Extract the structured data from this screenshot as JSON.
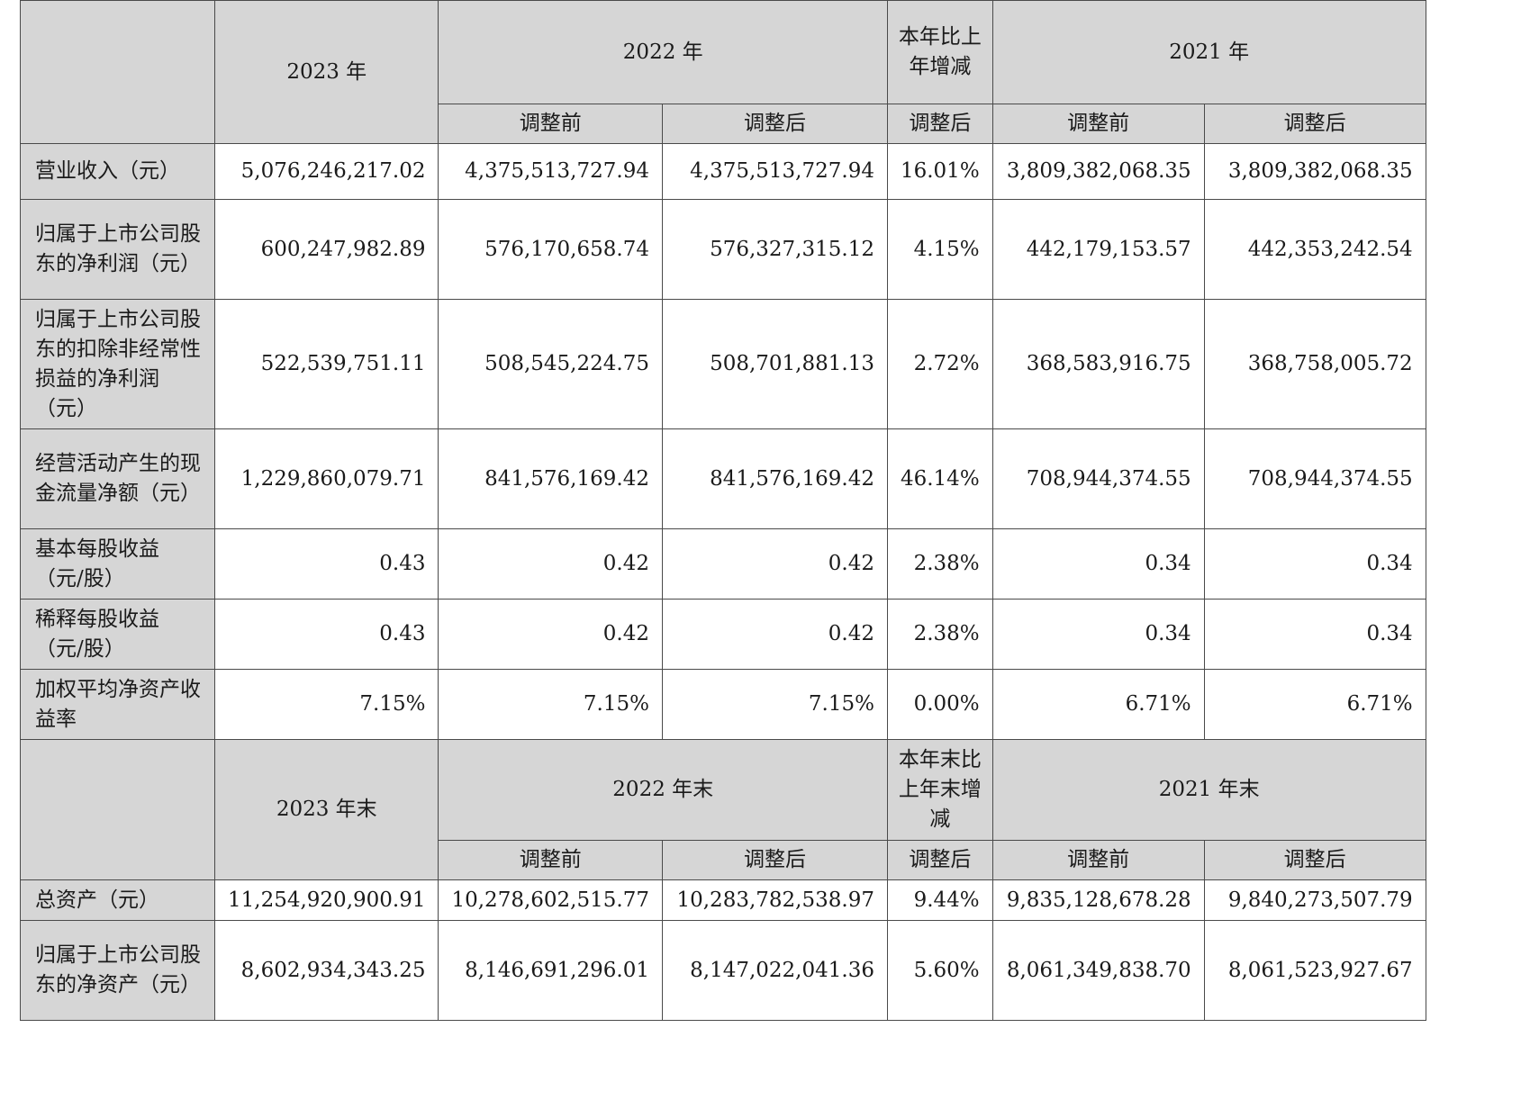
{
  "section1": {
    "header": {
      "year_2023": "2023 年",
      "year_2022": "2022 年",
      "change": "本年比上年增减",
      "year_2021": "2021 年",
      "before_adjust": "调整前",
      "after_adjust": "调整后"
    },
    "rows": [
      {
        "label": "营业收入（元）",
        "v2023": "5,076,246,217.02",
        "v2022_before": "4,375,513,727.94",
        "v2022_after": "4,375,513,727.94",
        "change": "16.01%",
        "v2021_before": "3,809,382,068.35",
        "v2021_after": "3,809,382,068.35"
      },
      {
        "label": "归属于上市公司股东的净利润（元）",
        "v2023": "600,247,982.89",
        "v2022_before": "576,170,658.74",
        "v2022_after": "576,327,315.12",
        "change": "4.15%",
        "v2021_before": "442,179,153.57",
        "v2021_after": "442,353,242.54"
      },
      {
        "label": "归属于上市公司股东的扣除非经常性损益的净利润（元）",
        "v2023": "522,539,751.11",
        "v2022_before": "508,545,224.75",
        "v2022_after": "508,701,881.13",
        "change": "2.72%",
        "v2021_before": "368,583,916.75",
        "v2021_after": "368,758,005.72"
      },
      {
        "label": "经营活动产生的现金流量净额（元）",
        "v2023": "1,229,860,079.71",
        "v2022_before": "841,576,169.42",
        "v2022_after": "841,576,169.42",
        "change": "46.14%",
        "v2021_before": "708,944,374.55",
        "v2021_after": "708,944,374.55"
      },
      {
        "label": "基本每股收益（元/股）",
        "v2023": "0.43",
        "v2022_before": "0.42",
        "v2022_after": "0.42",
        "change": "2.38%",
        "v2021_before": "0.34",
        "v2021_after": "0.34"
      },
      {
        "label": "稀释每股收益（元/股）",
        "v2023": "0.43",
        "v2022_before": "0.42",
        "v2022_after": "0.42",
        "change": "2.38%",
        "v2021_before": "0.34",
        "v2021_after": "0.34"
      },
      {
        "label": "加权平均净资产收益率",
        "v2023": "7.15%",
        "v2022_before": "7.15%",
        "v2022_after": "7.15%",
        "change": "0.00%",
        "v2021_before": "6.71%",
        "v2021_after": "6.71%"
      }
    ]
  },
  "section2": {
    "header": {
      "year_2023": "2023 年末",
      "year_2022": "2022 年末",
      "change": "本年末比上年末增减",
      "year_2021": "2021 年末",
      "before_adjust": "调整前",
      "after_adjust": "调整后"
    },
    "rows": [
      {
        "label": "总资产（元）",
        "v2023": "11,254,920,900.91",
        "v2022_before": "10,278,602,515.77",
        "v2022_after": "10,283,782,538.97",
        "change": "9.44%",
        "v2021_before": "9,835,128,678.28",
        "v2021_after": "9,840,273,507.79"
      },
      {
        "label": "归属于上市公司股东的净资产（元）",
        "v2023": "8,602,934,343.25",
        "v2022_before": "8,146,691,296.01",
        "v2022_after": "8,147,022,041.36",
        "change": "5.60%",
        "v2021_before": "8,061,349,838.70",
        "v2021_after": "8,061,523,927.67"
      }
    ]
  }
}
